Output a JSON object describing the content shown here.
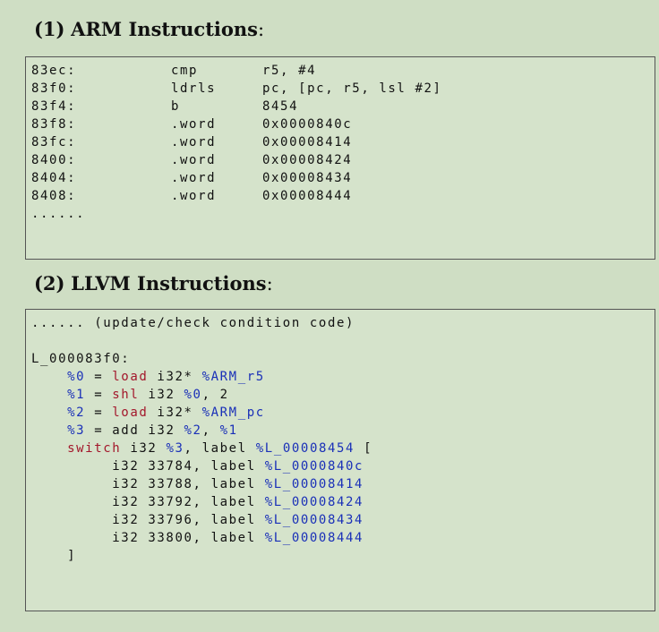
{
  "section1": {
    "number": "(1)",
    "title": "ARM Instructions",
    "colon": ":",
    "rows": [
      {
        "addr": "83ec:",
        "op": "cmp",
        "args": "r5, #4"
      },
      {
        "addr": "83f0:",
        "op": "ldrls",
        "args": "pc, [pc, r5, lsl #2]"
      },
      {
        "addr": "83f4:",
        "op": "b",
        "args": "8454"
      },
      {
        "addr": "83f8:",
        "op": ".word",
        "args": "0x0000840c"
      },
      {
        "addr": "83fc:",
        "op": ".word",
        "args": "0x00008414"
      },
      {
        "addr": "8400:",
        "op": ".word",
        "args": "0x00008424"
      },
      {
        "addr": "8404:",
        "op": ".word",
        "args": "0x00008434"
      },
      {
        "addr": "8408:",
        "op": ".word",
        "args": "0x00008444"
      }
    ],
    "ellipsis": "......"
  },
  "section2": {
    "number": "(2)",
    "title": "LLVM Instructions",
    "colon": ":",
    "lines": [
      [
        {
          "t": "...... (update/check condition code)"
        }
      ],
      [],
      [
        {
          "t": "L_000083f0:"
        }
      ],
      [
        {
          "t": "    "
        },
        {
          "t": "%0",
          "c": "var"
        },
        {
          "t": " = "
        },
        {
          "t": "load",
          "c": "kw"
        },
        {
          "t": " i32* "
        },
        {
          "t": "%ARM_r5",
          "c": "var"
        }
      ],
      [
        {
          "t": "    "
        },
        {
          "t": "%1",
          "c": "var"
        },
        {
          "t": " = "
        },
        {
          "t": "shl",
          "c": "kw"
        },
        {
          "t": " i32 "
        },
        {
          "t": "%0",
          "c": "var"
        },
        {
          "t": ", 2"
        }
      ],
      [
        {
          "t": "    "
        },
        {
          "t": "%2",
          "c": "var"
        },
        {
          "t": " = "
        },
        {
          "t": "load",
          "c": "kw"
        },
        {
          "t": " i32* "
        },
        {
          "t": "%ARM_pc",
          "c": "var"
        }
      ],
      [
        {
          "t": "    "
        },
        {
          "t": "%3",
          "c": "var"
        },
        {
          "t": " = add i32 "
        },
        {
          "t": "%2",
          "c": "var"
        },
        {
          "t": ", "
        },
        {
          "t": "%1",
          "c": "var"
        }
      ],
      [
        {
          "t": "    "
        },
        {
          "t": "switch",
          "c": "kw"
        },
        {
          "t": " i32 "
        },
        {
          "t": "%3",
          "c": "var"
        },
        {
          "t": ", label "
        },
        {
          "t": "%L_00008454",
          "c": "var"
        },
        {
          "t": " ["
        }
      ],
      [
        {
          "t": "         i32 33784, label "
        },
        {
          "t": "%L_0000840c",
          "c": "var"
        }
      ],
      [
        {
          "t": "         i32 33788, label "
        },
        {
          "t": "%L_00008414",
          "c": "var"
        }
      ],
      [
        {
          "t": "         i32 33792, label "
        },
        {
          "t": "%L_00008424",
          "c": "var"
        }
      ],
      [
        {
          "t": "         i32 33796, label "
        },
        {
          "t": "%L_00008434",
          "c": "var"
        }
      ],
      [
        {
          "t": "         i32 33800, label "
        },
        {
          "t": "%L_00008444",
          "c": "var"
        }
      ],
      [
        {
          "t": "    ]"
        }
      ]
    ]
  },
  "colors": {
    "keyword": "#a3172b",
    "variable": "#1a30b8",
    "background": "#cfdec4"
  }
}
